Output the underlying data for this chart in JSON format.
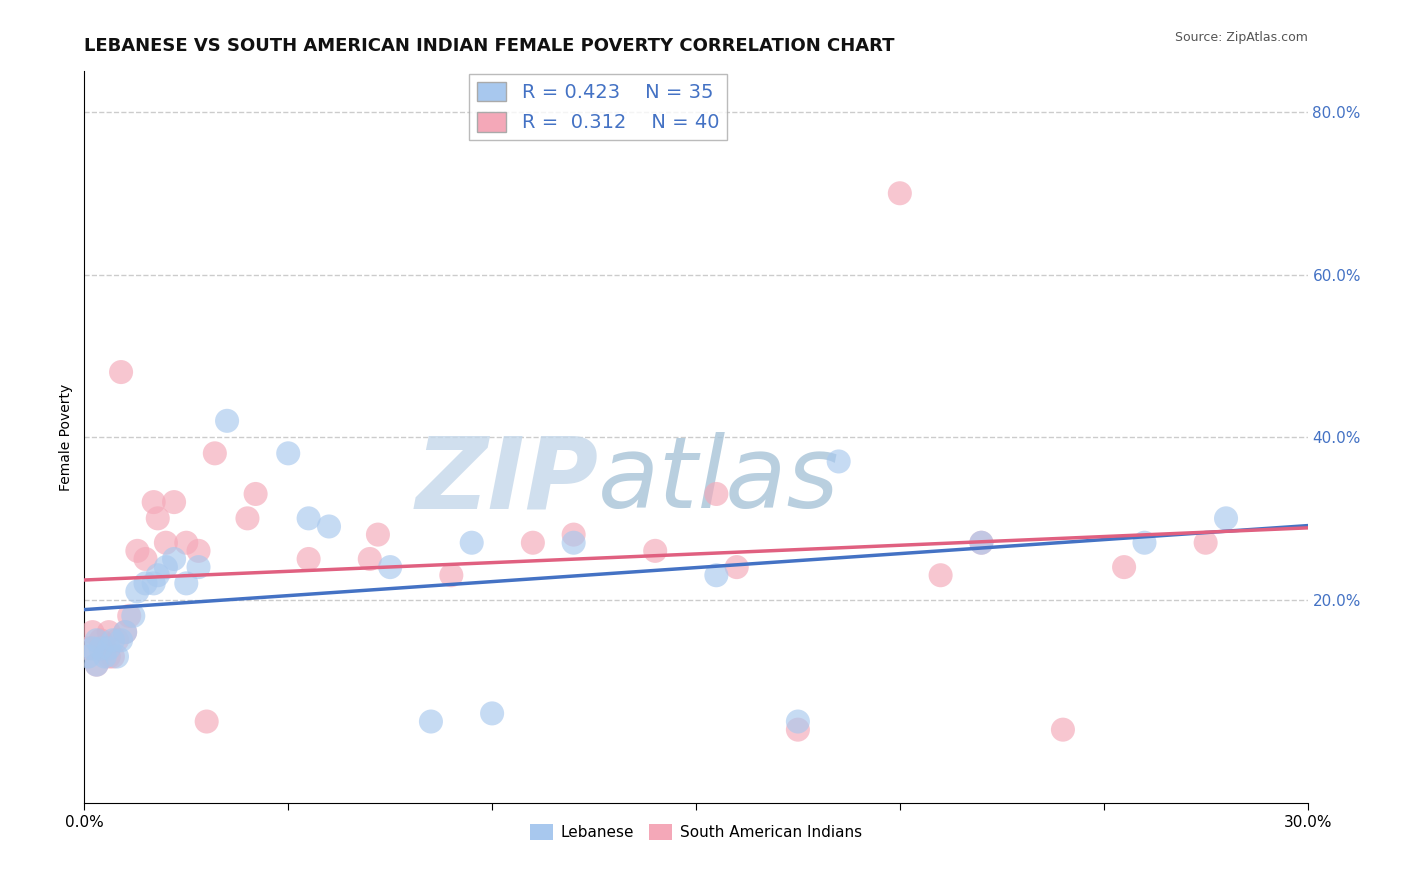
{
  "title": "LEBANESE VS SOUTH AMERICAN INDIAN FEMALE POVERTY CORRELATION CHART",
  "source": "Source: ZipAtlas.com",
  "ylabel": "Female Poverty",
  "xlim": [
    0.0,
    0.3
  ],
  "ylim": [
    -0.05,
    0.85
  ],
  "plot_ylim": [
    -0.05,
    0.85
  ],
  "xticks": [
    0.0,
    0.05,
    0.1,
    0.15,
    0.2,
    0.25,
    0.3
  ],
  "xticklabels": [
    "0.0%",
    "",
    "",
    "",
    "",
    "",
    "30.0%"
  ],
  "yticks_right": [
    0.2,
    0.4,
    0.6,
    0.8
  ],
  "ytick_labels_right": [
    "20.0%",
    "40.0%",
    "60.0%",
    "80.0%"
  ],
  "blue_color": "#A8C8EE",
  "pink_color": "#F4A8B8",
  "blue_line_color": "#4472C4",
  "pink_line_color": "#E06080",
  "legend_blue_r": "0.423",
  "legend_blue_n": "35",
  "legend_pink_r": "0.312",
  "legend_pink_n": "40",
  "watermark_zip": "ZIP",
  "watermark_atlas": "atlas",
  "watermark_color_zip": "#C8D8E8",
  "watermark_color_atlas": "#A0C0D8",
  "legend_label_blue": "Lebanese",
  "legend_label_pink": "South American Indians",
  "blue_dots_x": [
    0.001,
    0.002,
    0.003,
    0.003,
    0.004,
    0.005,
    0.006,
    0.007,
    0.008,
    0.009,
    0.01,
    0.012,
    0.013,
    0.015,
    0.017,
    0.018,
    0.02,
    0.022,
    0.025,
    0.028,
    0.035,
    0.05,
    0.055,
    0.06,
    0.075,
    0.085,
    0.095,
    0.1,
    0.12,
    0.155,
    0.175,
    0.185,
    0.22,
    0.26,
    0.28
  ],
  "blue_dots_y": [
    0.13,
    0.14,
    0.12,
    0.15,
    0.14,
    0.13,
    0.14,
    0.15,
    0.13,
    0.15,
    0.16,
    0.18,
    0.21,
    0.22,
    0.22,
    0.23,
    0.24,
    0.25,
    0.22,
    0.24,
    0.42,
    0.38,
    0.3,
    0.29,
    0.24,
    0.05,
    0.27,
    0.06,
    0.27,
    0.23,
    0.05,
    0.37,
    0.27,
    0.27,
    0.3
  ],
  "pink_dots_x": [
    0.001,
    0.002,
    0.003,
    0.004,
    0.005,
    0.006,
    0.006,
    0.007,
    0.008,
    0.009,
    0.01,
    0.011,
    0.013,
    0.015,
    0.017,
    0.018,
    0.02,
    0.022,
    0.025,
    0.028,
    0.03,
    0.032,
    0.04,
    0.042,
    0.055,
    0.07,
    0.072,
    0.09,
    0.11,
    0.12,
    0.14,
    0.155,
    0.16,
    0.175,
    0.2,
    0.21,
    0.22,
    0.24,
    0.255,
    0.275
  ],
  "pink_dots_y": [
    0.14,
    0.16,
    0.12,
    0.15,
    0.14,
    0.13,
    0.16,
    0.13,
    0.15,
    0.48,
    0.16,
    0.18,
    0.26,
    0.25,
    0.32,
    0.3,
    0.27,
    0.32,
    0.27,
    0.26,
    0.05,
    0.38,
    0.3,
    0.33,
    0.25,
    0.25,
    0.28,
    0.23,
    0.27,
    0.28,
    0.26,
    0.33,
    0.24,
    0.04,
    0.7,
    0.23,
    0.27,
    0.04,
    0.24,
    0.27
  ],
  "grid_color": "#CCCCCC",
  "background_color": "#FFFFFF",
  "title_fontsize": 13,
  "axis_label_fontsize": 10,
  "tick_fontsize": 11,
  "dot_size": 300
}
